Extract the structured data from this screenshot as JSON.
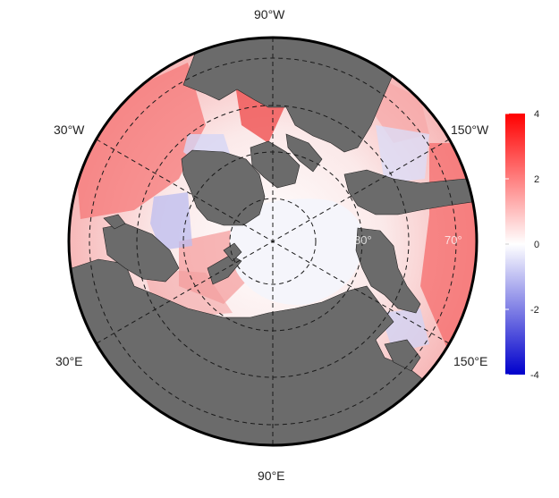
{
  "map": {
    "projection": "polar stereographic (Arctic)",
    "colors": {
      "land": "#6b6b6b",
      "graticule": "#1a1a1a",
      "outline": "#000000",
      "positive": "#ff0000",
      "zero": "#ffffff",
      "negative": "#0000cc"
    },
    "longitude_labels": {
      "top": "90°W",
      "upper_left": "30°W",
      "upper_right": "150°W",
      "lower_left": "30°E",
      "lower_right": "150°E",
      "bottom": "90°E"
    },
    "latitude_labels": [
      "80°",
      "70°"
    ]
  },
  "colorbar": {
    "ticks": [
      "4",
      "2",
      "0",
      "-2",
      "-4"
    ],
    "range": [
      -4,
      4
    ],
    "colors": [
      "#0000cc",
      "#ffffff",
      "#ff0000"
    ]
  }
}
